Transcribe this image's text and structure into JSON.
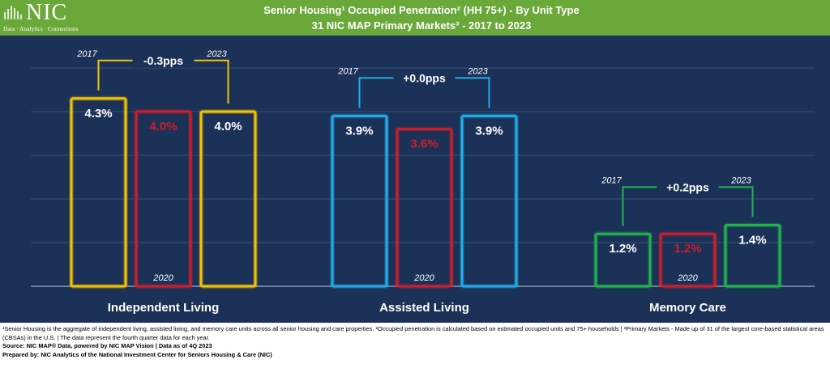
{
  "header": {
    "logo_text": "NIC",
    "logo_tagline": "Data · Analytics · Connections",
    "title_line1": "Senior Housing¹ Occupied Penetration² (HH 75+) - By Unit Type",
    "title_line2": "31 NIC MAP Primary Markets³ - 2017 to 2023",
    "color": "#6aa83a"
  },
  "chart_data": {
    "type": "bar",
    "categories": [
      "Independent Living",
      "Assisted Living",
      "Memory Care"
    ],
    "series": [
      {
        "year": "2017",
        "values": [
          4.3,
          3.9,
          1.2
        ],
        "labels": [
          "4.3%",
          "3.9%",
          "1.2%"
        ]
      },
      {
        "year": "2020",
        "values": [
          4.0,
          3.6,
          1.2
        ],
        "labels": [
          "4.0%",
          "3.6%",
          "1.2%"
        ]
      },
      {
        "year": "2023",
        "values": [
          4.0,
          3.9,
          1.4
        ],
        "labels": [
          "4.0%",
          "3.9%",
          "1.4%"
        ]
      }
    ],
    "year_marker": "2020",
    "changes": [
      {
        "from": "2017",
        "to": "2023",
        "label": "-0.3pps"
      },
      {
        "from": "2017",
        "to": "2023",
        "label": "+0.0pps"
      },
      {
        "from": "2017",
        "to": "2023",
        "label": "+0.2pps"
      }
    ],
    "category_colors": [
      "#f5c400",
      "#20aee8",
      "#21b34c"
    ],
    "highlight_color": "#cc1f2b",
    "background": "#1b3157",
    "ylim": [
      0,
      5
    ],
    "grid": true,
    "legend": "none"
  },
  "footer": {
    "footnotes": "¹Senior Housing is the aggregate of independent living, assisted living, and memory care units across all senior housing and care properties. ²Occupied penetration is calculated based on estimated occupied units and 75+ households | ³Primary Markets - Made up of 31 of the largest core-based statistical areas (CBSAs) in the U.S. | The data represent the fourth quarter data for each year.",
    "source": "Source: NIC MAP® Data, powered by NIC MAP Vision | Data as of 4Q 2023",
    "prepared_by": "Prepared by: NIC Analytics of the National Investment Center for Seniors Housing & Care (NIC)"
  }
}
